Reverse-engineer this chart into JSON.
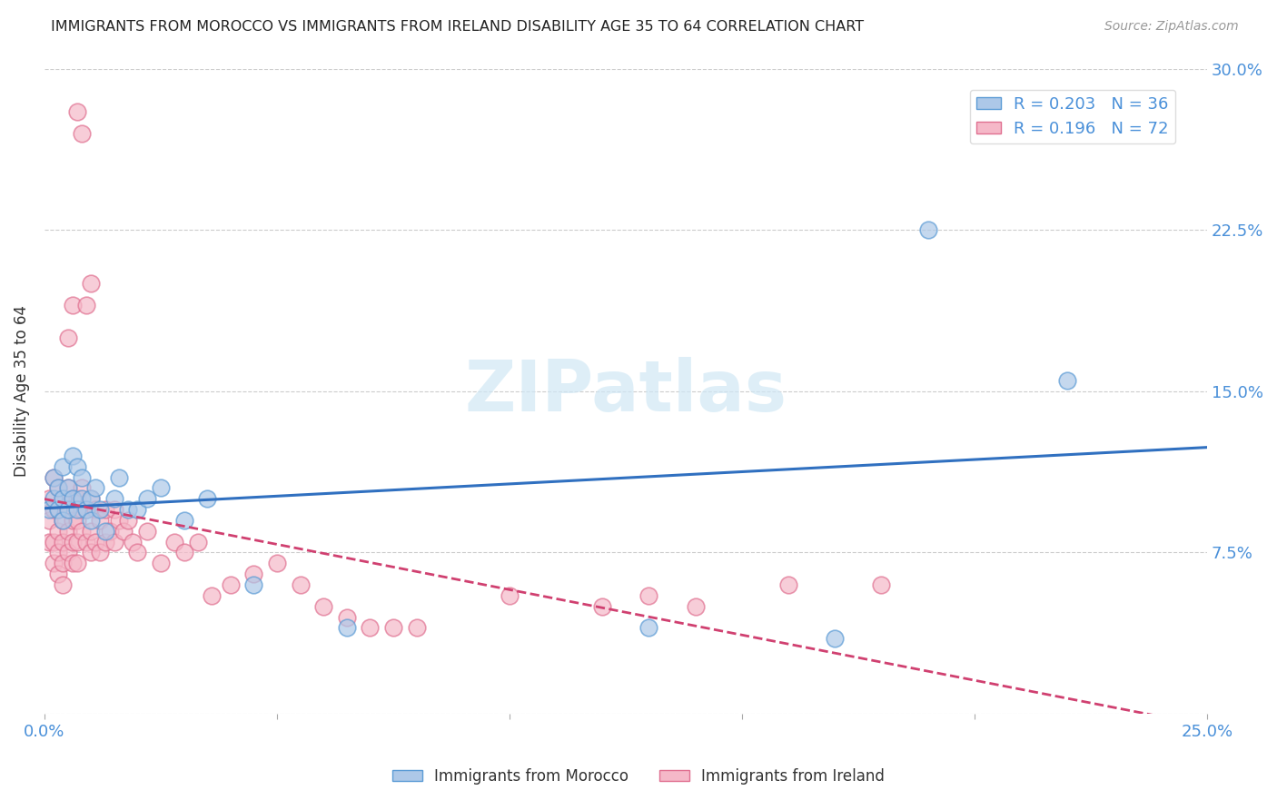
{
  "title": "IMMIGRANTS FROM MOROCCO VS IMMIGRANTS FROM IRELAND DISABILITY AGE 35 TO 64 CORRELATION CHART",
  "source": "Source: ZipAtlas.com",
  "ylabel": "Disability Age 35 to 64",
  "xlim": [
    0.0,
    0.25
  ],
  "ylim": [
    0.0,
    0.3
  ],
  "morocco_R": 0.203,
  "morocco_N": 36,
  "ireland_R": 0.196,
  "ireland_N": 72,
  "morocco_color": "#adc8e8",
  "ireland_color": "#f5b8c8",
  "morocco_edge_color": "#5b9bd5",
  "ireland_edge_color": "#e07090",
  "morocco_line_color": "#3070c0",
  "ireland_line_color": "#d04070",
  "watermark_color": "#d0e8f5",
  "morocco_scatter_x": [
    0.001,
    0.002,
    0.002,
    0.003,
    0.003,
    0.004,
    0.004,
    0.004,
    0.005,
    0.005,
    0.006,
    0.006,
    0.007,
    0.007,
    0.008,
    0.008,
    0.009,
    0.01,
    0.01,
    0.011,
    0.012,
    0.013,
    0.015,
    0.016,
    0.018,
    0.02,
    0.022,
    0.025,
    0.03,
    0.035,
    0.045,
    0.065,
    0.13,
    0.17,
    0.19,
    0.22
  ],
  "morocco_scatter_y": [
    0.095,
    0.11,
    0.1,
    0.105,
    0.095,
    0.115,
    0.1,
    0.09,
    0.105,
    0.095,
    0.12,
    0.1,
    0.095,
    0.115,
    0.1,
    0.11,
    0.095,
    0.1,
    0.09,
    0.105,
    0.095,
    0.085,
    0.1,
    0.11,
    0.095,
    0.095,
    0.1,
    0.105,
    0.09,
    0.1,
    0.06,
    0.04,
    0.04,
    0.035,
    0.225,
    0.155
  ],
  "ireland_scatter_x": [
    0.001,
    0.001,
    0.001,
    0.002,
    0.002,
    0.002,
    0.002,
    0.003,
    0.003,
    0.003,
    0.003,
    0.003,
    0.004,
    0.004,
    0.004,
    0.004,
    0.004,
    0.005,
    0.005,
    0.005,
    0.005,
    0.006,
    0.006,
    0.006,
    0.006,
    0.007,
    0.007,
    0.007,
    0.007,
    0.008,
    0.008,
    0.008,
    0.009,
    0.009,
    0.01,
    0.01,
    0.01,
    0.011,
    0.011,
    0.012,
    0.012,
    0.013,
    0.013,
    0.014,
    0.015,
    0.015,
    0.016,
    0.017,
    0.018,
    0.019,
    0.02,
    0.022,
    0.025,
    0.028,
    0.03,
    0.033,
    0.036,
    0.04,
    0.045,
    0.05,
    0.055,
    0.06,
    0.065,
    0.07,
    0.075,
    0.08,
    0.1,
    0.12,
    0.13,
    0.14,
    0.16,
    0.18
  ],
  "ireland_scatter_y": [
    0.09,
    0.1,
    0.08,
    0.11,
    0.095,
    0.08,
    0.07,
    0.105,
    0.095,
    0.085,
    0.075,
    0.065,
    0.1,
    0.09,
    0.08,
    0.07,
    0.06,
    0.105,
    0.095,
    0.085,
    0.075,
    0.1,
    0.09,
    0.08,
    0.07,
    0.1,
    0.09,
    0.08,
    0.07,
    0.105,
    0.095,
    0.085,
    0.095,
    0.08,
    0.1,
    0.085,
    0.075,
    0.095,
    0.08,
    0.09,
    0.075,
    0.095,
    0.08,
    0.085,
    0.095,
    0.08,
    0.09,
    0.085,
    0.09,
    0.08,
    0.075,
    0.085,
    0.07,
    0.08,
    0.075,
    0.08,
    0.055,
    0.06,
    0.065,
    0.07,
    0.06,
    0.05,
    0.045,
    0.04,
    0.04,
    0.04,
    0.055,
    0.05,
    0.055,
    0.05,
    0.06,
    0.06
  ],
  "ireland_extra_x": [
    0.005,
    0.006,
    0.007,
    0.008,
    0.009,
    0.01
  ],
  "ireland_extra_y": [
    0.175,
    0.19,
    0.28,
    0.27,
    0.19,
    0.2
  ]
}
